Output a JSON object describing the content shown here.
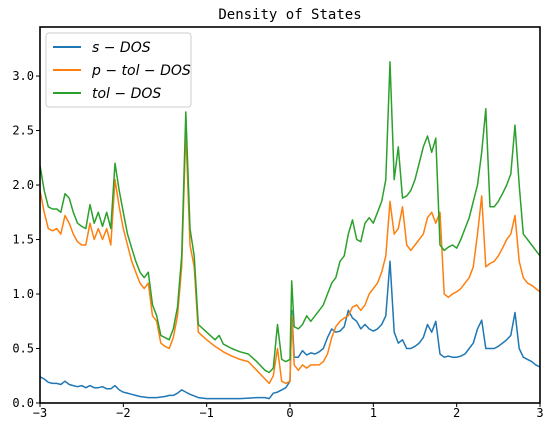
{
  "chart_data": {
    "type": "line",
    "title": "Density of States",
    "xlabel": "",
    "ylabel": "",
    "xlim": [
      -3,
      3
    ],
    "ylim": [
      0,
      3.45
    ],
    "xticks": [
      -3,
      -2,
      -1,
      0,
      1,
      2,
      3
    ],
    "xtick_labels": [
      "−3",
      "−2",
      "−1",
      "0",
      "1",
      "2",
      "3"
    ],
    "yticks": [
      0,
      0.5,
      1,
      1.5,
      2,
      2.5,
      3
    ],
    "ytick_labels": [
      "0.0",
      "0.5",
      "1.0",
      "1.5",
      "2.0",
      "2.5",
      "3.0"
    ],
    "grid": false,
    "legend_position": "top-left",
    "series": [
      {
        "name": "s − DOS",
        "color": "#1f77b4",
        "x": [
          -3,
          -2.95,
          -2.9,
          -2.85,
          -2.8,
          -2.75,
          -2.7,
          -2.65,
          -2.6,
          -2.55,
          -2.5,
          -2.45,
          -2.4,
          -2.35,
          -2.3,
          -2.25,
          -2.2,
          -2.15,
          -2.1,
          -2.05,
          -2.0,
          -1.9,
          -1.8,
          -1.7,
          -1.6,
          -1.5,
          -1.45,
          -1.4,
          -1.35,
          -1.3,
          -1.25,
          -1.2,
          -1.1,
          -1.0,
          -0.8,
          -0.6,
          -0.4,
          -0.3,
          -0.25,
          -0.2,
          -0.15,
          -0.1,
          -0.05,
          0.0,
          0.02,
          0.05,
          0.1,
          0.15,
          0.2,
          0.25,
          0.3,
          0.35,
          0.4,
          0.45,
          0.5,
          0.55,
          0.6,
          0.65,
          0.7,
          0.75,
          0.8,
          0.85,
          0.9,
          0.95,
          1.0,
          1.05,
          1.1,
          1.15,
          1.2,
          1.25,
          1.3,
          1.35,
          1.4,
          1.45,
          1.5,
          1.55,
          1.6,
          1.65,
          1.7,
          1.75,
          1.8,
          1.85,
          1.9,
          1.95,
          2.0,
          2.05,
          2.1,
          2.15,
          2.2,
          2.25,
          2.3,
          2.35,
          2.4,
          2.45,
          2.5,
          2.55,
          2.6,
          2.65,
          2.7,
          2.75,
          2.8,
          2.85,
          2.9,
          2.95,
          3.0
        ],
        "y": [
          0.24,
          0.22,
          0.19,
          0.18,
          0.18,
          0.17,
          0.2,
          0.17,
          0.16,
          0.15,
          0.16,
          0.14,
          0.16,
          0.14,
          0.14,
          0.15,
          0.13,
          0.13,
          0.16,
          0.12,
          0.1,
          0.08,
          0.06,
          0.05,
          0.05,
          0.06,
          0.07,
          0.07,
          0.09,
          0.12,
          0.1,
          0.08,
          0.05,
          0.04,
          0.04,
          0.04,
          0.05,
          0.05,
          0.04,
          0.09,
          0.1,
          0.12,
          0.14,
          0.2,
          0.85,
          0.42,
          0.42,
          0.48,
          0.44,
          0.46,
          0.45,
          0.47,
          0.5,
          0.6,
          0.68,
          0.65,
          0.66,
          0.7,
          0.85,
          0.78,
          0.75,
          0.68,
          0.72,
          0.68,
          0.66,
          0.68,
          0.72,
          0.8,
          1.3,
          0.65,
          0.55,
          0.58,
          0.5,
          0.5,
          0.52,
          0.55,
          0.6,
          0.72,
          0.65,
          0.75,
          0.45,
          0.42,
          0.43,
          0.42,
          0.42,
          0.43,
          0.45,
          0.5,
          0.55,
          0.68,
          0.76,
          0.5,
          0.5,
          0.5,
          0.52,
          0.55,
          0.58,
          0.62,
          0.83,
          0.5,
          0.42,
          0.4,
          0.38,
          0.35,
          0.33
        ]
      },
      {
        "name": "p − tol − DOS",
        "color": "#ff7f0e",
        "x": [
          -3,
          -2.95,
          -2.9,
          -2.85,
          -2.8,
          -2.75,
          -2.7,
          -2.65,
          -2.6,
          -2.55,
          -2.5,
          -2.45,
          -2.4,
          -2.35,
          -2.3,
          -2.25,
          -2.2,
          -2.15,
          -2.1,
          -2.05,
          -2.0,
          -1.95,
          -1.9,
          -1.85,
          -1.8,
          -1.75,
          -1.7,
          -1.65,
          -1.6,
          -1.55,
          -1.5,
          -1.45,
          -1.4,
          -1.35,
          -1.3,
          -1.25,
          -1.2,
          -1.15,
          -1.1,
          -1.0,
          -0.9,
          -0.8,
          -0.7,
          -0.6,
          -0.5,
          -0.4,
          -0.3,
          -0.25,
          -0.2,
          -0.15,
          -0.1,
          -0.05,
          0.0,
          0.02,
          0.05,
          0.1,
          0.15,
          0.2,
          0.25,
          0.3,
          0.35,
          0.4,
          0.45,
          0.5,
          0.55,
          0.6,
          0.65,
          0.7,
          0.75,
          0.8,
          0.85,
          0.9,
          0.95,
          1.0,
          1.05,
          1.1,
          1.15,
          1.2,
          1.25,
          1.3,
          1.35,
          1.4,
          1.45,
          1.5,
          1.55,
          1.6,
          1.65,
          1.7,
          1.75,
          1.8,
          1.85,
          1.9,
          1.95,
          2.0,
          2.05,
          2.1,
          2.15,
          2.2,
          2.25,
          2.3,
          2.35,
          2.4,
          2.45,
          2.5,
          2.55,
          2.6,
          2.65,
          2.7,
          2.75,
          2.8,
          2.85,
          2.9,
          2.95,
          3.0
        ],
        "y": [
          1.95,
          1.75,
          1.6,
          1.58,
          1.6,
          1.55,
          1.72,
          1.65,
          1.55,
          1.48,
          1.45,
          1.45,
          1.65,
          1.5,
          1.6,
          1.5,
          1.6,
          1.45,
          2.05,
          1.8,
          1.6,
          1.45,
          1.3,
          1.2,
          1.1,
          1.05,
          1.1,
          0.8,
          0.75,
          0.55,
          0.52,
          0.5,
          0.6,
          0.8,
          1.25,
          2.5,
          1.45,
          1.25,
          0.65,
          0.58,
          0.52,
          0.47,
          0.43,
          0.4,
          0.38,
          0.3,
          0.22,
          0.18,
          0.25,
          0.5,
          0.2,
          0.18,
          0.2,
          0.8,
          0.35,
          0.3,
          0.35,
          0.32,
          0.35,
          0.35,
          0.35,
          0.38,
          0.45,
          0.6,
          0.7,
          0.75,
          0.78,
          0.8,
          0.88,
          0.9,
          0.85,
          0.9,
          1.0,
          1.05,
          1.1,
          1.2,
          1.35,
          1.85,
          1.55,
          1.6,
          1.8,
          1.45,
          1.4,
          1.45,
          1.5,
          1.55,
          1.7,
          1.75,
          1.65,
          1.75,
          1.0,
          0.97,
          1.0,
          1.02,
          1.05,
          1.1,
          1.15,
          1.25,
          1.55,
          1.9,
          1.25,
          1.28,
          1.3,
          1.35,
          1.42,
          1.5,
          1.55,
          1.72,
          1.3,
          1.15,
          1.1,
          1.08,
          1.05,
          1.02
        ]
      },
      {
        "name": "tol − DOS",
        "color": "#2ca02c",
        "x": [
          -3,
          -2.95,
          -2.9,
          -2.85,
          -2.8,
          -2.75,
          -2.7,
          -2.65,
          -2.6,
          -2.55,
          -2.5,
          -2.45,
          -2.4,
          -2.35,
          -2.3,
          -2.25,
          -2.2,
          -2.15,
          -2.1,
          -2.05,
          -2.0,
          -1.95,
          -1.9,
          -1.85,
          -1.8,
          -1.75,
          -1.7,
          -1.65,
          -1.6,
          -1.55,
          -1.5,
          -1.45,
          -1.4,
          -1.35,
          -1.3,
          -1.25,
          -1.2,
          -1.15,
          -1.1,
          -1.0,
          -0.9,
          -0.85,
          -0.8,
          -0.7,
          -0.6,
          -0.5,
          -0.4,
          -0.3,
          -0.25,
          -0.2,
          -0.15,
          -0.1,
          -0.05,
          0.0,
          0.02,
          0.05,
          0.1,
          0.15,
          0.2,
          0.25,
          0.3,
          0.35,
          0.4,
          0.45,
          0.5,
          0.55,
          0.6,
          0.65,
          0.7,
          0.75,
          0.8,
          0.85,
          0.9,
          0.95,
          1.0,
          1.05,
          1.1,
          1.15,
          1.2,
          1.25,
          1.3,
          1.35,
          1.4,
          1.45,
          1.5,
          1.55,
          1.6,
          1.65,
          1.7,
          1.75,
          1.8,
          1.85,
          1.9,
          1.95,
          2.0,
          2.05,
          2.1,
          2.15,
          2.2,
          2.25,
          2.3,
          2.35,
          2.4,
          2.45,
          2.5,
          2.55,
          2.6,
          2.65,
          2.7,
          2.75,
          2.8,
          2.85,
          2.9,
          2.95,
          3.0
        ],
        "y": [
          2.18,
          1.95,
          1.8,
          1.78,
          1.78,
          1.75,
          1.92,
          1.88,
          1.75,
          1.65,
          1.62,
          1.6,
          1.82,
          1.65,
          1.75,
          1.62,
          1.75,
          1.6,
          2.2,
          1.95,
          1.75,
          1.55,
          1.42,
          1.3,
          1.2,
          1.15,
          1.2,
          0.9,
          0.8,
          0.62,
          0.6,
          0.58,
          0.68,
          0.88,
          1.35,
          2.67,
          1.6,
          1.35,
          0.72,
          0.65,
          0.58,
          0.62,
          0.54,
          0.5,
          0.47,
          0.45,
          0.38,
          0.3,
          0.28,
          0.32,
          0.72,
          0.4,
          0.38,
          0.4,
          1.12,
          0.7,
          0.68,
          0.72,
          0.8,
          0.75,
          0.8,
          0.85,
          0.9,
          1.0,
          1.1,
          1.15,
          1.3,
          1.35,
          1.55,
          1.68,
          1.5,
          1.48,
          1.65,
          1.7,
          1.65,
          1.75,
          1.85,
          2.05,
          3.13,
          2.05,
          2.35,
          1.88,
          1.9,
          1.95,
          2.05,
          2.2,
          2.35,
          2.45,
          2.3,
          2.43,
          1.45,
          1.4,
          1.43,
          1.45,
          1.42,
          1.5,
          1.6,
          1.7,
          1.85,
          2.0,
          2.3,
          2.7,
          1.8,
          1.8,
          1.85,
          1.92,
          2.0,
          2.1,
          2.55,
          2.0,
          1.55,
          1.5,
          1.45,
          1.4,
          1.35
        ]
      }
    ]
  }
}
